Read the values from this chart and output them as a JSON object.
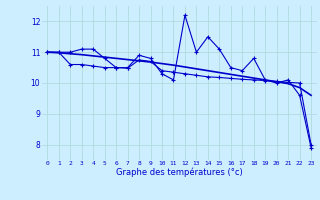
{
  "xlabel": "Graphe des températures (°c)",
  "background_color": "#cceeff",
  "line_color": "#0000cc",
  "xlim": [
    -0.5,
    23.5
  ],
  "ylim": [
    7.5,
    12.5
  ],
  "yticks": [
    8,
    9,
    10,
    11,
    12
  ],
  "xticks": [
    0,
    1,
    2,
    3,
    4,
    5,
    6,
    7,
    8,
    9,
    10,
    11,
    12,
    13,
    14,
    15,
    16,
    17,
    18,
    19,
    20,
    21,
    22,
    23
  ],
  "series1_x": [
    0,
    1,
    2,
    3,
    4,
    5,
    6,
    7,
    8,
    9,
    10,
    11,
    12,
    13,
    14,
    15,
    16,
    17,
    18,
    19,
    20,
    21,
    22,
    23
  ],
  "series1_y": [
    11.0,
    11.0,
    11.0,
    11.1,
    11.1,
    10.8,
    10.5,
    10.5,
    10.9,
    10.8,
    10.3,
    10.1,
    12.2,
    11.0,
    11.5,
    11.1,
    10.5,
    10.4,
    10.8,
    10.1,
    10.0,
    10.1,
    9.6,
    7.9
  ],
  "series2_x": [
    0,
    1,
    2,
    3,
    4,
    5,
    6,
    7,
    8,
    9,
    10,
    11,
    12,
    13,
    14,
    15,
    16,
    17,
    18,
    19,
    20,
    21,
    22,
    23
  ],
  "series2_y": [
    11.0,
    10.98,
    10.95,
    10.92,
    10.88,
    10.84,
    10.8,
    10.76,
    10.72,
    10.68,
    10.63,
    10.58,
    10.52,
    10.46,
    10.4,
    10.34,
    10.28,
    10.22,
    10.16,
    10.1,
    10.04,
    9.98,
    9.85,
    9.6
  ],
  "series3_x": [
    0,
    1,
    2,
    3,
    4,
    5,
    6,
    7,
    8,
    9,
    10,
    11,
    12,
    13,
    14,
    15,
    16,
    17,
    18,
    19,
    20,
    21,
    22,
    23
  ],
  "series3_y": [
    11.0,
    11.0,
    10.6,
    10.6,
    10.55,
    10.5,
    10.5,
    10.48,
    10.75,
    10.7,
    10.4,
    10.35,
    10.3,
    10.25,
    10.2,
    10.18,
    10.15,
    10.12,
    10.1,
    10.08,
    10.05,
    10.02,
    10.0,
    8.0
  ]
}
